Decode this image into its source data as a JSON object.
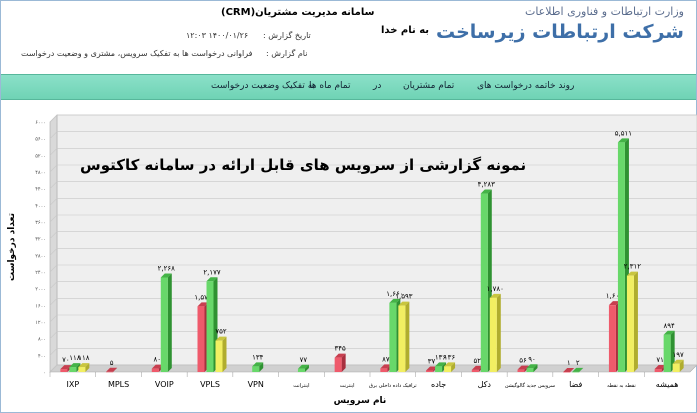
{
  "header": {
    "org_title": "وزارت ارتباطات و فناوری اطلاعات",
    "org_name": "شرکت ارتباطات زیرساخت",
    "bism": "به نام خدا",
    "system_title": "سامانه مدیریت مشتریان(CRM)",
    "date_label": "تاریخ گزارش :",
    "date_value": "۱۴۰۰/۰۱/۲۶ ۱۲:۰۳",
    "report_label": "نام گزارش :",
    "report_value": "فراوانی درخواست ها به تفکیک سرویس، مشتری و وضعیت درخواست"
  },
  "nav": {
    "items": [
      "روند خاتمه درخواست های",
      "تمام مشتریان",
      "در",
      "تمام ماه ها",
      "به تفکیک وضعیت درخواست"
    ]
  },
  "overlay_title": "نمونه گزارشی از سرویس های قابل ارائه در سامانه کاکتوس",
  "colors": {
    "red": "#ef5a6b",
    "green": "#68d86a",
    "yellow": "#f2ef62",
    "grid": "#c8c8c8",
    "wall": "#efefef"
  },
  "chart_data": {
    "type": "bar",
    "xlabel": "نام سرویس",
    "ylabel": "تعداد درخواست",
    "ylim": [
      0,
      6000
    ],
    "yticks": [
      0,
      400,
      800,
      1200,
      1600,
      2000,
      2400,
      2800,
      3200,
      3600,
      4000,
      4400,
      4800,
      5200,
      5600,
      6000
    ],
    "ytick_labels": [
      "۰",
      "۴۰۰",
      "۸۰۰",
      "۱۲۰۰",
      "۱۶۰۰",
      "۲۰۰۰",
      "۲۴۰۰",
      "۲۸۰۰",
      "۳۲۰۰",
      "۳۶۰۰",
      "۴۰۰۰",
      "۴۴۰۰",
      "۴۸۰۰",
      "۵۲۰۰",
      "۵۶۰۰",
      "۶۰۰۰"
    ],
    "categories": [
      "IXP",
      "MPLS",
      "VOIP",
      "VPLS",
      "VPN",
      "اینترانت",
      "اینترنت",
      "ترافیک داده داخلی برق",
      "جاده",
      "دکل",
      "سرویس جدید گالوگیشن",
      "فضا",
      "نقطه به نقطه",
      "همیشه"
    ],
    "series": [
      {
        "values": [
          70,
          5,
          80,
          1576,
          0,
          0,
          345,
          87,
          37,
          52,
          56,
          1,
          1604,
          71
        ]
      },
      {
        "values": [
          118,
          0,
          2268,
          2177,
          134,
          77,
          0,
          1660,
          136,
          4283,
          90,
          2,
          5511,
          894
        ]
      },
      {
        "values": [
          118,
          0,
          0,
          752,
          0,
          0,
          0,
          1593,
          136,
          1780,
          0,
          0,
          2312,
          197
        ]
      }
    ],
    "labels": [
      [
        "۷۰",
        "۱۱۸",
        "۱۱۸"
      ],
      [
        "۵",
        "",
        ""
      ],
      [
        "۸۰",
        "۲,۲۶۸",
        ""
      ],
      [
        "۱,۵۷۶",
        "۲,۱۷۷",
        "۷۵۲"
      ],
      [
        "",
        "۱۳۴",
        ""
      ],
      [
        "",
        "۷۷",
        ""
      ],
      [
        "۳۴۵",
        "",
        ""
      ],
      [
        "۸۷",
        "۱,۶۶۰",
        "۱,۵۹۳"
      ],
      [
        "۳۷",
        "۱۳۶",
        "۱۳۶"
      ],
      [
        "۵۲",
        "۴,۲۸۳",
        "۱,۷۸۰"
      ],
      [
        "۵۶",
        "۹۰",
        ""
      ],
      [
        "۱",
        "۲",
        ""
      ],
      [
        "۱,۶۰۴",
        "۵,۵۱۱",
        "۲,۳۱۲"
      ],
      [
        "۷۱",
        "۸۹۴",
        "۱۹۷"
      ]
    ]
  }
}
